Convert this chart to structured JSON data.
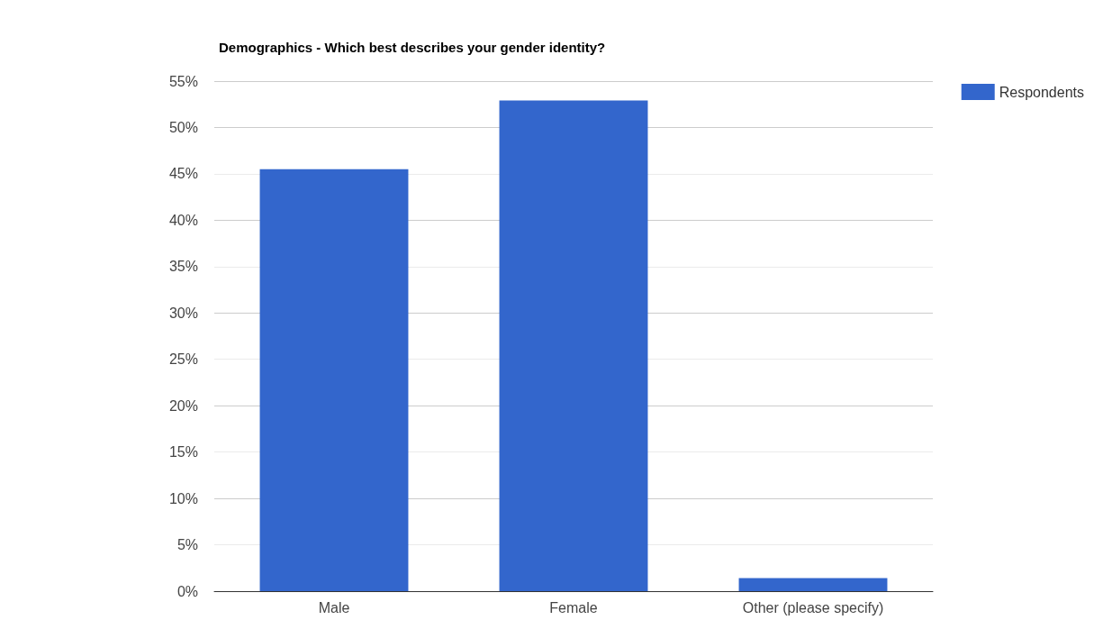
{
  "chart_data": {
    "type": "bar",
    "title": "Demographics - Which best describes your gender identity?",
    "categories": [
      "Male",
      "Female",
      "Other (please specify)"
    ],
    "series": [
      {
        "name": "Respondents",
        "color": "#3366cc",
        "values": [
          45.5,
          52.9,
          1.4
        ]
      }
    ],
    "ylim": [
      0,
      55
    ],
    "yticks": [
      {
        "value": 0,
        "label": "0%"
      },
      {
        "value": 5,
        "label": "5%"
      },
      {
        "value": 10,
        "label": "10%"
      },
      {
        "value": 15,
        "label": "15%"
      },
      {
        "value": 20,
        "label": "20%"
      },
      {
        "value": 25,
        "label": "25%"
      },
      {
        "value": 30,
        "label": "30%"
      },
      {
        "value": 35,
        "label": "35%"
      },
      {
        "value": 40,
        "label": "40%"
      },
      {
        "value": 45,
        "label": "45%"
      },
      {
        "value": 50,
        "label": "50%"
      },
      {
        "value": 55,
        "label": "55%"
      }
    ],
    "grid": "y",
    "legend": "top right"
  }
}
